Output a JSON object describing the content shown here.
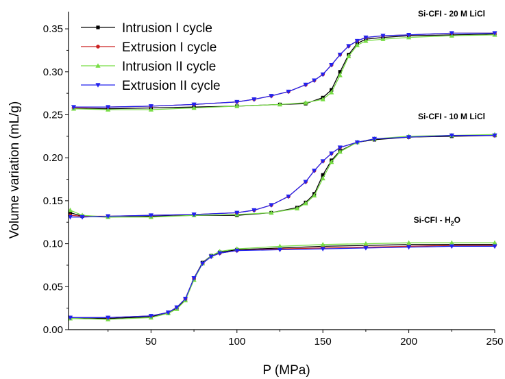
{
  "chart_data": {
    "type": "line",
    "xlabel": "P (MPa)",
    "ylabel": "Volume variation (mL/g)",
    "xlim": [
      2,
      250
    ],
    "ylim": [
      0.0,
      0.37
    ],
    "xticks": [
      50,
      100,
      150,
      200,
      250
    ],
    "xtick_labels": [
      "50",
      "100",
      "150",
      "200",
      "250"
    ],
    "yticks": [
      0.0,
      0.05,
      0.1,
      0.15,
      0.2,
      0.25,
      0.3,
      0.35
    ],
    "ytick_labels": [
      "0.00",
      "0.05",
      "0.10",
      "0.15",
      "0.20",
      "0.25",
      "0.30",
      "0.35"
    ],
    "grid": false,
    "legend_position": "top-left",
    "legend": [
      {
        "label": "Intrusion I cycle",
        "color": "#000000",
        "marker": "square"
      },
      {
        "label": "Extrusion I cycle",
        "color": "#cc2222",
        "marker": "circle"
      },
      {
        "label": "Intrusion II cycle",
        "color": "#77dd44",
        "marker": "triangle-up"
      },
      {
        "label": "Extrusion II cycle",
        "color": "#2222ee",
        "marker": "triangle-down"
      }
    ],
    "annotations": {
      "a20": "Si-CFI - 20 M LiCl",
      "a10": "Si-CFI - 10 M LiCl",
      "ah2o_main": "Si-CFI - H",
      "ah2o_sub": "2",
      "ah2o_tail": "O"
    },
    "groups": [
      {
        "annotation": "Si-CFI - 20 M LiCl",
        "series": [
          {
            "cycle": "Intrusion I cycle",
            "x": [
              5,
              25,
              50,
              75,
              100,
              125,
              140,
              150,
              155,
              160,
              165,
              170,
              175,
              185,
              200,
              225,
              250
            ],
            "y": [
              0.257,
              0.257,
              0.258,
              0.259,
              0.26,
              0.262,
              0.263,
              0.27,
              0.279,
              0.3,
              0.32,
              0.333,
              0.338,
              0.34,
              0.342,
              0.343,
              0.344
            ]
          },
          {
            "cycle": "Extrusion I cycle",
            "x": [
              250,
              225,
              200,
              185,
              175,
              170,
              165,
              160,
              155,
              150,
              145,
              140,
              130,
              120,
              110,
              100,
              75,
              50,
              25,
              5
            ],
            "y": [
              0.345,
              0.345,
              0.343,
              0.342,
              0.34,
              0.336,
              0.33,
              0.32,
              0.308,
              0.297,
              0.29,
              0.285,
              0.277,
              0.272,
              0.268,
              0.265,
              0.262,
              0.26,
              0.259,
              0.258
            ]
          },
          {
            "cycle": "Intrusion II cycle",
            "x": [
              5,
              25,
              50,
              75,
              100,
              125,
              140,
              150,
              155,
              160,
              165,
              170,
              175,
              185,
              200,
              225,
              250
            ],
            "y": [
              0.257,
              0.256,
              0.256,
              0.258,
              0.26,
              0.262,
              0.264,
              0.268,
              0.276,
              0.296,
              0.318,
              0.331,
              0.336,
              0.338,
              0.34,
              0.342,
              0.343
            ]
          },
          {
            "cycle": "Extrusion II cycle",
            "x": [
              250,
              225,
              200,
              185,
              175,
              170,
              165,
              160,
              155,
              150,
              145,
              140,
              130,
              120,
              110,
              100,
              75,
              50,
              25,
              5
            ],
            "y": [
              0.345,
              0.345,
              0.343,
              0.342,
              0.34,
              0.336,
              0.33,
              0.32,
              0.308,
              0.297,
              0.29,
              0.285,
              0.277,
              0.272,
              0.268,
              0.265,
              0.262,
              0.26,
              0.259,
              0.259
            ]
          }
        ]
      },
      {
        "annotation": "Si-CFI - 10 M LiCl",
        "series": [
          {
            "cycle": "Intrusion I cycle",
            "x": [
              3,
              10,
              25,
              50,
              75,
              100,
              120,
              135,
              140,
              145,
              150,
              155,
              160,
              170,
              180,
              200,
              225,
              250
            ],
            "y": [
              0.136,
              0.132,
              0.131,
              0.132,
              0.133,
              0.133,
              0.136,
              0.142,
              0.148,
              0.158,
              0.18,
              0.197,
              0.208,
              0.218,
              0.221,
              0.224,
              0.225,
              0.226
            ]
          },
          {
            "cycle": "Extrusion I cycle",
            "x": [
              250,
              225,
              200,
              180,
              170,
              160,
              155,
              150,
              145,
              140,
              130,
              120,
              110,
              100,
              75,
              50,
              25,
              10,
              3
            ],
            "y": [
              0.226,
              0.226,
              0.224,
              0.222,
              0.218,
              0.212,
              0.205,
              0.196,
              0.185,
              0.172,
              0.155,
              0.145,
              0.139,
              0.136,
              0.134,
              0.133,
              0.132,
              0.132,
              0.133
            ]
          },
          {
            "cycle": "Intrusion II cycle",
            "x": [
              3,
              10,
              25,
              50,
              75,
              100,
              120,
              135,
              140,
              145,
              150,
              155,
              160,
              170,
              180,
              200,
              225,
              250
            ],
            "y": [
              0.139,
              0.133,
              0.131,
              0.131,
              0.133,
              0.134,
              0.136,
              0.141,
              0.147,
              0.156,
              0.176,
              0.195,
              0.207,
              0.218,
              0.222,
              0.225,
              0.226,
              0.227
            ]
          },
          {
            "cycle": "Extrusion II cycle",
            "x": [
              250,
              225,
              200,
              180,
              170,
              160,
              155,
              150,
              145,
              140,
              130,
              120,
              110,
              100,
              75,
              50,
              25,
              10,
              3
            ],
            "y": [
              0.226,
              0.226,
              0.224,
              0.222,
              0.218,
              0.212,
              0.205,
              0.196,
              0.185,
              0.172,
              0.155,
              0.145,
              0.139,
              0.136,
              0.134,
              0.133,
              0.132,
              0.131,
              0.131
            ]
          }
        ]
      },
      {
        "annotation": "Si-CFI - H2O",
        "series": [
          {
            "cycle": "Intrusion I cycle",
            "x": [
              3,
              25,
              50,
              60,
              65,
              70,
              75,
              80,
              85,
              90,
              100,
              125,
              150,
              175,
              200,
              225,
              250
            ],
            "y": [
              0.014,
              0.013,
              0.015,
              0.02,
              0.025,
              0.035,
              0.06,
              0.078,
              0.086,
              0.09,
              0.093,
              0.095,
              0.097,
              0.098,
              0.099,
              0.099,
              0.099
            ]
          },
          {
            "cycle": "Extrusion I cycle",
            "x": [
              250,
              225,
              200,
              175,
              150,
              125,
              100,
              90,
              85,
              80,
              75,
              70,
              65,
              60,
              50,
              25,
              3
            ],
            "y": [
              0.098,
              0.098,
              0.097,
              0.096,
              0.095,
              0.094,
              0.092,
              0.089,
              0.085,
              0.077,
              0.06,
              0.036,
              0.026,
              0.02,
              0.016,
              0.014,
              0.014
            ]
          },
          {
            "cycle": "Intrusion II cycle",
            "x": [
              3,
              25,
              50,
              60,
              65,
              70,
              75,
              80,
              85,
              90,
              100,
              125,
              150,
              175,
              200,
              225,
              250
            ],
            "y": [
              0.013,
              0.012,
              0.014,
              0.019,
              0.024,
              0.034,
              0.058,
              0.077,
              0.086,
              0.091,
              0.094,
              0.097,
              0.099,
              0.1,
              0.101,
              0.101,
              0.101
            ]
          },
          {
            "cycle": "Extrusion II cycle",
            "x": [
              250,
              225,
              200,
              175,
              150,
              125,
              100,
              90,
              85,
              80,
              75,
              70,
              65,
              60,
              50,
              25,
              3
            ],
            "y": [
              0.097,
              0.097,
              0.096,
              0.095,
              0.094,
              0.093,
              0.092,
              0.089,
              0.085,
              0.077,
              0.06,
              0.036,
              0.026,
              0.02,
              0.016,
              0.014,
              0.014
            ]
          }
        ]
      }
    ]
  }
}
